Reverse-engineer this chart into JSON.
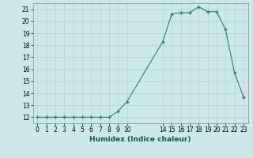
{
  "x": [
    0,
    1,
    2,
    3,
    4,
    5,
    6,
    7,
    8,
    9,
    10,
    14,
    15,
    16,
    17,
    18,
    19,
    20,
    21,
    22,
    23
  ],
  "y": [
    12,
    12,
    12,
    12,
    12,
    12,
    12,
    12,
    12,
    12.5,
    13.3,
    18.3,
    20.6,
    20.7,
    20.7,
    21.2,
    20.8,
    20.8,
    19.3,
    15.7,
    13.7
  ],
  "title": "",
  "xlabel": "Humidex (Indice chaleur)",
  "ylabel": "",
  "xlim": [
    -0.5,
    23.5
  ],
  "ylim": [
    11.5,
    21.5
  ],
  "yticks": [
    12,
    13,
    14,
    15,
    16,
    17,
    18,
    19,
    20,
    21
  ],
  "xticks": [
    0,
    1,
    2,
    3,
    4,
    5,
    6,
    7,
    8,
    9,
    10,
    14,
    15,
    16,
    17,
    18,
    19,
    20,
    21,
    22,
    23
  ],
  "line_color": "#2e7d6e",
  "marker_color": "#2e7d6e",
  "bg_color": "#cce8e8",
  "grid_color": "#b8d4d4"
}
